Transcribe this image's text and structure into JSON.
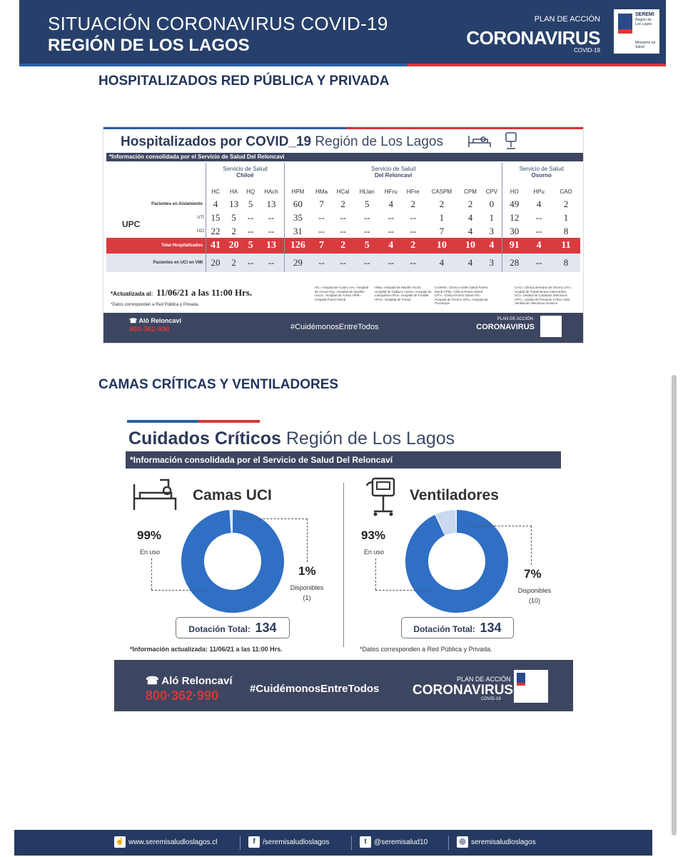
{
  "header": {
    "title_line1": "SITUACIÓN CORONAVIRUS COVID-19",
    "title_line2": "REGIÓN DE LOS LAGOS",
    "plan_small": "PLAN DE ACCIÓN",
    "plan_big": "CORONAVIRUS",
    "plan_covid": "COVID-19",
    "seremi": "SEREMI",
    "seremi_region": "Región de Los Lagos",
    "ministerio": "Ministerio de Salud"
  },
  "section1_title": "HOSPITALIZADOS RED PÚBLICA Y PRIVADA",
  "section2_title": "CAMAS CRÍTICAS Y VENTILADORES",
  "hosp": {
    "title_bold": "Hospitalizados por COVID_19",
    "title_rest": " Región de Los Lagos",
    "info": "*Información consolidada por el Servicio de Salud Del Reloncaví",
    "svc_chiloe_a": "Servicio de Salud",
    "svc_chiloe_b": "Chiloé",
    "svc_rel_a": "Servicio de Salud",
    "svc_rel_b": "Del Reloncaví",
    "svc_oso_a": "Servicio de Salud",
    "svc_oso_b": "Osorno",
    "columns": [
      "HC",
      "HA",
      "HQ",
      "HAch",
      "HPM",
      "HMa",
      "HCal",
      "HLlan",
      "HFru",
      "HFre",
      "CASPM",
      "CPM",
      "CPV",
      "HO",
      "HPu",
      "CAO"
    ],
    "row_aislamiento_label": "Pacientes en Aislamiento",
    "row_aislamiento": [
      "4",
      "13",
      "5",
      "13",
      "60",
      "7",
      "2",
      "5",
      "4",
      "2",
      "2",
      "2",
      "0",
      "49",
      "4",
      "2"
    ],
    "upc_label": "UPC",
    "uti_label": "UTI",
    "uci_label": "UCI",
    "row_uti": [
      "15",
      "5",
      "--",
      "--",
      "35",
      "--",
      "--",
      "--",
      "--",
      "--",
      "1",
      "4",
      "1",
      "12",
      "--",
      "1"
    ],
    "row_uci": [
      "22",
      "2",
      "--",
      "--",
      "31",
      "--",
      "--",
      "--",
      "--",
      "--",
      "7",
      "4",
      "3",
      "30",
      "--",
      "8"
    ],
    "total_label": "Total Hospitalizados",
    "row_total": [
      "41",
      "20",
      "5",
      "13",
      "126",
      "7",
      "2",
      "5",
      "4",
      "2",
      "10",
      "10",
      "4",
      "91",
      "4",
      "11"
    ],
    "vmi_label": "Pacientes en UCI en VMI",
    "row_vmi": [
      "20",
      "2",
      "--",
      "--",
      "29",
      "--",
      "--",
      "--",
      "--",
      "--",
      "4",
      "4",
      "3",
      "28",
      "--",
      "8"
    ],
    "updated_label": "*Actualizada al:",
    "updated_value": "11/06/21 a las 11:00 Hrs.",
    "note": "*Datos corresponden a Red Pública y Privada.",
    "abbr1": "HC= Hospital de Castro HA= Hospital de Ancud HQ= Hospital de Queilén HAch= Hospital de Achao HPM= Hospital Puerto Montt",
    "abbr2": "HMa= Hospital de Maullín HCal= Hospital de Calbuco HLlan= Hospital de Llanquihue HFru= Hospital de Frutillar HFre= Hospital de Fresia",
    "abbr3": "CASPM= Clínica Andes Salud Puerto Montt CPM= Clínica Puerto Montt CPV= Clínica Puerto Varas HO= Hospital de Osorno HPu= Hospital de Purranque",
    "abbr4": "CAO= Clínica Alemana de Osorno UTI= Unidad de Tratamientos Intermedios UCI= Unidad de Cuidados Intensivos UPC= Unidad de Paciente Crítico VMI= Ventilación Mecánica Invasiva",
    "foot_alo": "Aló Reloncaví",
    "foot_phone": "800-362-990",
    "foot_hashtag": "#CuidémonosEntreTodos",
    "foot_plan": "PLAN DE ACCIÓN",
    "foot_plan_big": "CORONAVIRUS"
  },
  "crit": {
    "title_bold": "Cuidados Críticos",
    "title_rest": " Región de Los Lagos",
    "info": "*Información consolidada por el Servicio de Salud Del Reloncaví",
    "camas_title": "Camas UCI",
    "camas_in_use_pct": "99%",
    "camas_in_use_label": "En uso",
    "camas_free_pct": "1%",
    "camas_free_label": "Disponibles",
    "camas_free_count": "(1)",
    "camas_total_label": "Dotación Total:",
    "camas_total": "134",
    "camas_in_use_fraction": 0.99,
    "vent_title": "Ventiladores",
    "vent_in_use_pct": "93%",
    "vent_in_use_label": "En uso",
    "vent_free_pct": "7%",
    "vent_free_label": "Disponibles",
    "vent_free_count": "(10)",
    "vent_total_label": "Dotación Total:",
    "vent_total": "134",
    "vent_in_use_fraction": 0.93,
    "update_note": "*Información actualizada: 11/06/21 a las 11:00 Hrs.",
    "data_note": "*Datos corresponden a Red Pública y Privada.",
    "foot_alo": "Aló Reloncaví",
    "foot_phone": "800·362·990",
    "foot_hashtag": "#CuidémonosEntreTodos",
    "foot_plan": "PLAN DE ACCIÓN",
    "foot_plan_big": "CORONAVIRUS",
    "foot_covid": "COVID-19",
    "color_used": "#2f6fc4",
    "color_free": "#c9d9ee"
  },
  "footer": {
    "web": "www.seremisaludloslagos.cl",
    "facebook": "/seremisaludloslagos",
    "twitter": "@seremisalud10",
    "instagram": "seremisaludloslagos"
  }
}
